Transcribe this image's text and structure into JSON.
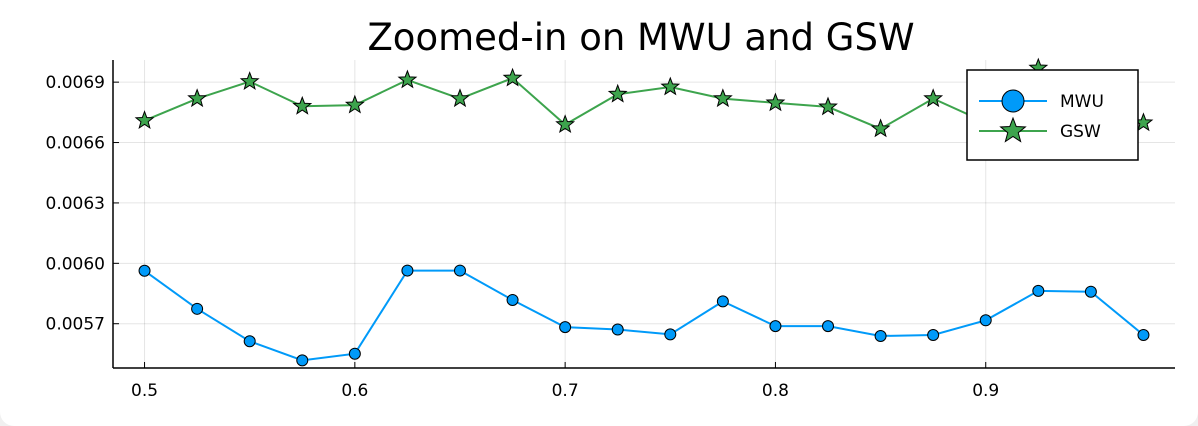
{
  "chart_data": {
    "type": "line",
    "title": "Zoomed-in on MWU and GSW",
    "xlabel": "",
    "ylabel": "",
    "xlim": [
      0.485,
      0.99
    ],
    "ylim": [
      0.00548,
      0.00701
    ],
    "x_ticks": [
      0.5,
      0.6,
      0.7,
      0.8,
      0.9
    ],
    "x_tick_labels": [
      "0.5",
      "0.6",
      "0.7",
      "0.8",
      "0.9"
    ],
    "y_ticks": [
      0.0057,
      0.006,
      0.0063,
      0.0066,
      0.0069
    ],
    "y_tick_labels": [
      "0.0057",
      "0.0060",
      "0.0063",
      "0.0066",
      "0.0069"
    ],
    "grid": true,
    "legend_position": "top-right",
    "x": [
      0.5,
      0.525,
      0.55,
      0.575,
      0.6,
      0.625,
      0.65,
      0.675,
      0.7,
      0.725,
      0.75,
      0.775,
      0.8,
      0.825,
      0.85,
      0.875,
      0.9,
      0.925,
      0.95,
      0.975
    ],
    "series": [
      {
        "name": "MWU",
        "color": "#009af9",
        "marker": "circle",
        "values": [
          0.005963,
          0.005774,
          0.005613,
          0.005518,
          0.005551,
          0.005964,
          0.005964,
          0.005818,
          0.005683,
          0.005671,
          0.005647,
          0.005811,
          0.005688,
          0.005688,
          0.005639,
          0.005644,
          0.005717,
          0.005863,
          0.005859,
          0.005644
        ]
      },
      {
        "name": "GSW",
        "color": "#3da44d",
        "marker": "star",
        "values": [
          0.006709,
          0.006818,
          0.006903,
          0.00678,
          0.006786,
          0.006911,
          0.006818,
          0.00692,
          0.006689,
          0.00684,
          0.006876,
          0.006818,
          0.006797,
          0.006777,
          0.006668,
          0.006818,
          0.0067,
          0.00697,
          0.00673,
          0.006698
        ]
      }
    ]
  }
}
